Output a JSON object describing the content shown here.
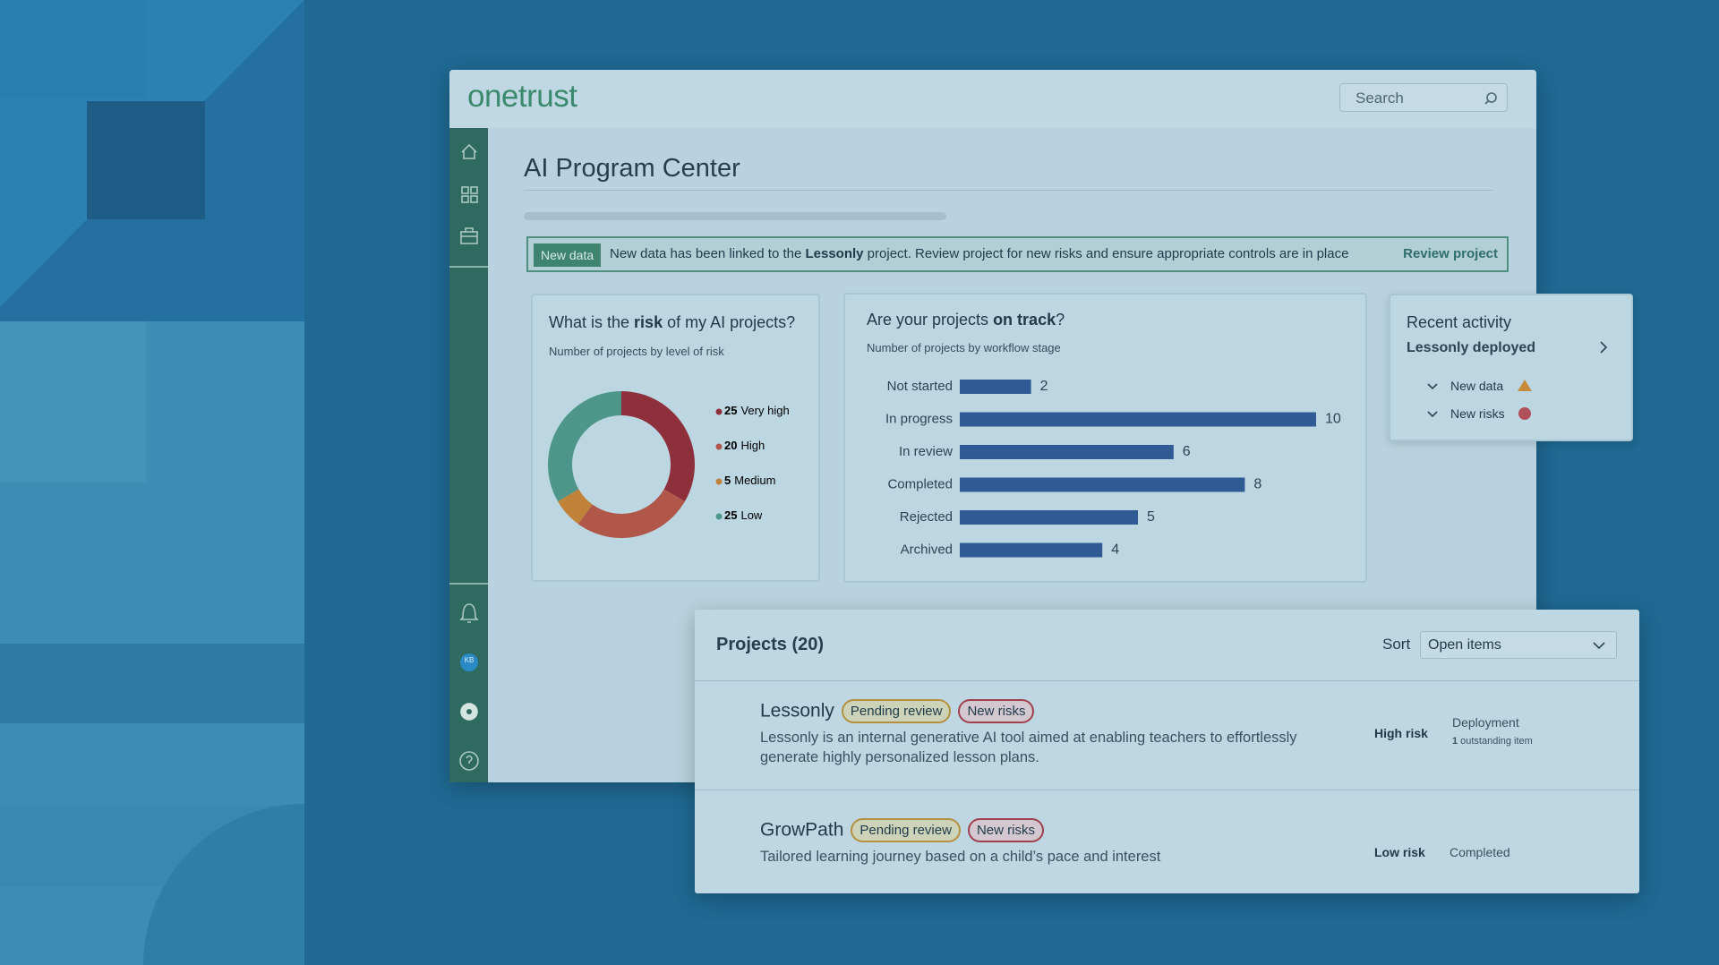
{
  "app": {
    "logo": "onetrust",
    "search_placeholder": "Search",
    "avatar": "KB"
  },
  "page": {
    "title": "AI Program Center"
  },
  "banner": {
    "tag": "New data",
    "text_before": "New data has been linked to the ",
    "project": "Lessonly",
    "text_after": " project. Review project for new risks and ensure appropriate controls are in place",
    "action": "Review project"
  },
  "chart_data": [
    {
      "type": "donut",
      "title": {
        "before": "What is the ",
        "emphasis": "risk",
        "after": " of my AI projects?"
      },
      "subtitle": "Number of projects by level of risk",
      "categories": [
        "Very high",
        "High",
        "Medium",
        "Low"
      ],
      "values": [
        25,
        20,
        5,
        25
      ],
      "colors": [
        "#8e2f3c",
        "#b0574a",
        "#c08238",
        "#4e9689"
      ]
    },
    {
      "type": "bar",
      "title": {
        "before": "Are your projects ",
        "emphasis": "on track",
        "after": "?"
      },
      "subtitle": "Number of projects by workflow stage",
      "categories": [
        "Not started",
        "In progress",
        "In review",
        "Completed",
        "Rejected",
        "Archived"
      ],
      "values": [
        2,
        10,
        6,
        8,
        5,
        4
      ],
      "color": "#2f5a94"
    }
  ],
  "recent_activity": {
    "title": "Recent activity",
    "item": "Lessonly deployed",
    "entries": [
      "New data",
      "New risks"
    ]
  },
  "projects": {
    "title": "Projects (20)",
    "sort_label": "Sort",
    "sort_value": "Open items",
    "rows": [
      {
        "name": "Lessonly",
        "tags": [
          "Pending review",
          "New risks"
        ],
        "description": "Lessonly is an internal generative AI tool aimed at enabling teachers to effortlessly generate highly personalized lesson plans.",
        "risk": "High risk",
        "stage": "Deployment",
        "outstanding_count": 1,
        "outstanding_text": "outstanding item"
      },
      {
        "name": "GrowPath",
        "tags": [
          "Pending review",
          "New risks"
        ],
        "description": "Tailored learning journey based on a child’s pace and interest",
        "risk": "Low risk",
        "stage": "Completed"
      }
    ]
  }
}
